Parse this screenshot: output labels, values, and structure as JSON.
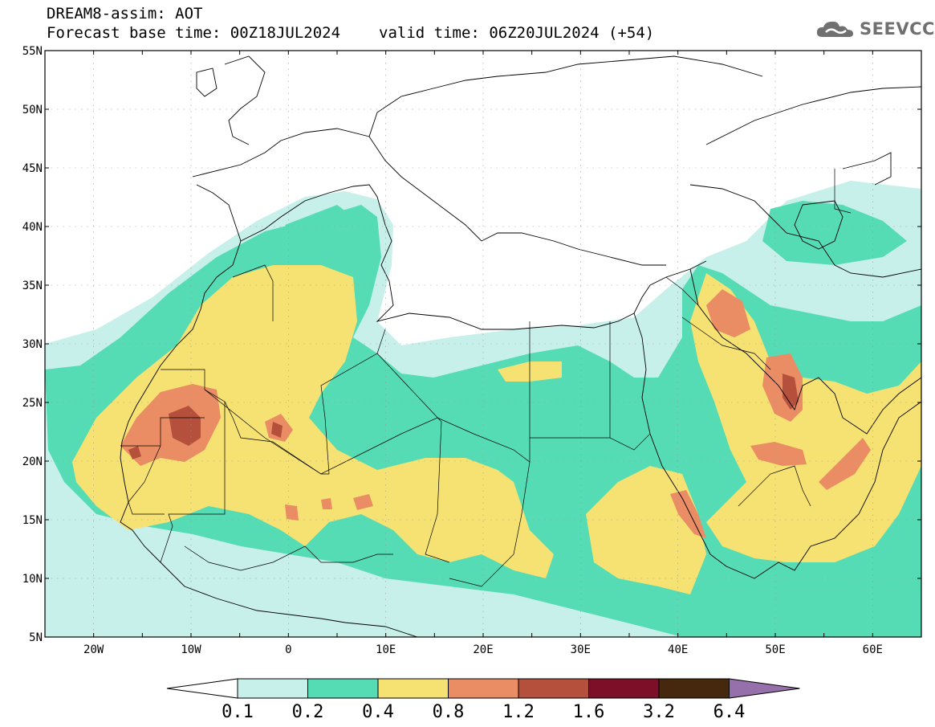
{
  "header": {
    "title": "DREAM8-assim: AOT",
    "base_time": "Forecast base time: 00Z18JUL2024",
    "valid_time": "valid time: 06Z20JUL2024 (+54)"
  },
  "logo": {
    "text": "SEEVCCC",
    "icon": "cloud-icon"
  },
  "map": {
    "lat_labels": [
      "55N",
      "50N",
      "45N",
      "40N",
      "35N",
      "30N",
      "25N",
      "20N",
      "15N",
      "10N",
      "5N"
    ],
    "lon_labels": [
      "20W",
      "10W",
      "0",
      "10E",
      "20E",
      "30E",
      "40E",
      "50E",
      "60E"
    ],
    "lon_values": [
      -20,
      -10,
      0,
      10,
      20,
      30,
      40,
      50,
      60
    ],
    "lat_values": [
      55,
      50,
      45,
      40,
      35,
      30,
      25,
      20,
      15,
      10,
      5
    ],
    "lon_range": [
      -25,
      65
    ],
    "lat_range": [
      5,
      55
    ]
  },
  "colorbar": {
    "labels": [
      "0.1",
      "0.2",
      "0.4",
      "0.8",
      "1.2",
      "1.6",
      "3.2",
      "6.4"
    ],
    "colors": [
      "#c8f0ea",
      "#55dcb4",
      "#f5e273",
      "#ea8c64",
      "#b4503c",
      "#7d0f28",
      "#46280f",
      "#9670aa"
    ]
  }
}
